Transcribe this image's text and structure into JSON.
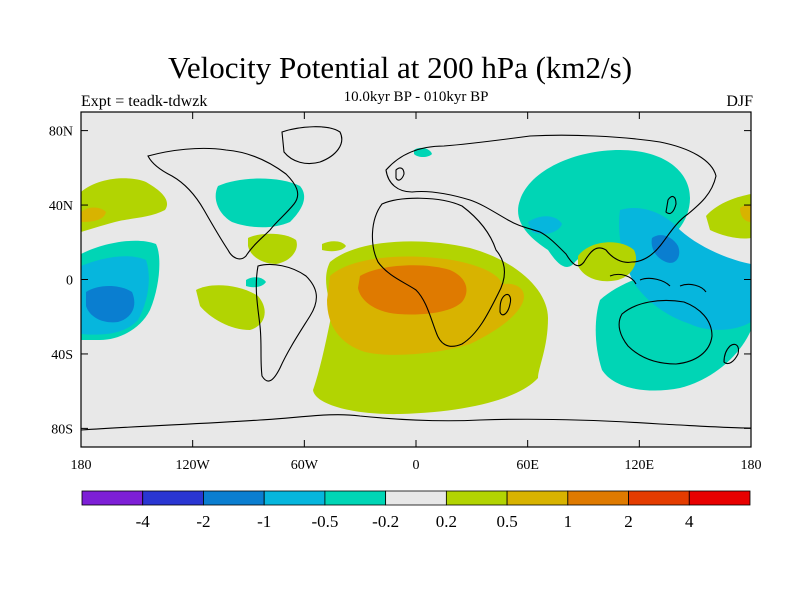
{
  "figure": {
    "title": "Velocity Potential at 200 hPa (km2/s)",
    "subtitle": "10.0kyr BP - 010kyr BP",
    "left_label": "Expt = teadk-tdwzk",
    "right_label": "DJF"
  },
  "map": {
    "projection": "cylindrical-equidistant",
    "lon_range": [
      -180,
      180
    ],
    "lat_range": [
      -90,
      90
    ],
    "lat_ticks": [
      {
        "lat": 80,
        "label": "80N"
      },
      {
        "lat": 40,
        "label": "40N"
      },
      {
        "lat": 0,
        "label": "0"
      },
      {
        "lat": -40,
        "label": "40S"
      },
      {
        "lat": -80,
        "label": "80S"
      }
    ],
    "lon_ticks": [
      {
        "lon": -180,
        "label": "180"
      },
      {
        "lon": -120,
        "label": "120W"
      },
      {
        "lon": -60,
        "label": "60W"
      },
      {
        "lon": 0,
        "label": "0"
      },
      {
        "lon": 60,
        "label": "60E"
      },
      {
        "lon": 120,
        "label": "120E"
      },
      {
        "lon": 180,
        "label": "180"
      }
    ],
    "background_color": "#e8e8e8",
    "coastline_color": "#000000"
  },
  "colorbar": {
    "colors": [
      "#7d1fd6",
      "#2a36d2",
      "#0a7ed0",
      "#06b6dd",
      "#00d5b5",
      "#e8e8e8",
      "#b2d402",
      "#d8b300",
      "#df7a00",
      "#e43c00",
      "#e80000"
    ],
    "labels": [
      "-4",
      "-2",
      "-1",
      "-0.5",
      "-0.2",
      "0.2",
      "0.5",
      "1",
      "2",
      "4"
    ]
  },
  "chart_data": {
    "type": "heatmap",
    "variable": "Velocity Potential at 200 hPa",
    "units": "km2/s",
    "levels": [
      -4,
      -2,
      -1,
      -0.5,
      -0.2,
      0.2,
      0.5,
      1,
      2,
      4
    ],
    "features": [
      {
        "region": "tropical Atlantic / Africa",
        "lon": [
          -45,
          45
        ],
        "lat": [
          -55,
          18
        ],
        "min_level": 0.2,
        "peak_level": 1,
        "peak_note": "1 to 2 over Gulf of Guinea / central Africa"
      },
      {
        "region": "Southern Ocean (south Atlantic)",
        "lon": [
          -40,
          70
        ],
        "lat": [
          -80,
          -40
        ],
        "min_level": 0.2
      },
      {
        "region": "central tropical Pacific",
        "lon": [
          -180,
          -145
        ],
        "lat": [
          -30,
          20
        ],
        "min_level": -1,
        "peak_level": -0.5
      },
      {
        "region": "western Pacific / maritime continent",
        "lon": [
          105,
          180
        ],
        "lat": [
          -40,
          40
        ],
        "min_level": -0.5
      },
      {
        "region": "Asia / northern Indian Ocean",
        "lon": [
          45,
          145
        ],
        "lat": [
          15,
          65
        ],
        "min_level": -0.5
      },
      {
        "region": "North America",
        "lon": [
          -120,
          -65
        ],
        "lat": [
          25,
          60
        ],
        "min_level": -0.5
      },
      {
        "region": "North Pacific",
        "lon": [
          -180,
          -135
        ],
        "lat": [
          30,
          55
        ],
        "min_level": 0.2,
        "peak_level": 0.5
      },
      {
        "region": "Southeast Asia (Bay of Bengal)",
        "lon": [
          85,
          110
        ],
        "lat": [
          5,
          25
        ],
        "min_level": 0.2
      }
    ]
  }
}
